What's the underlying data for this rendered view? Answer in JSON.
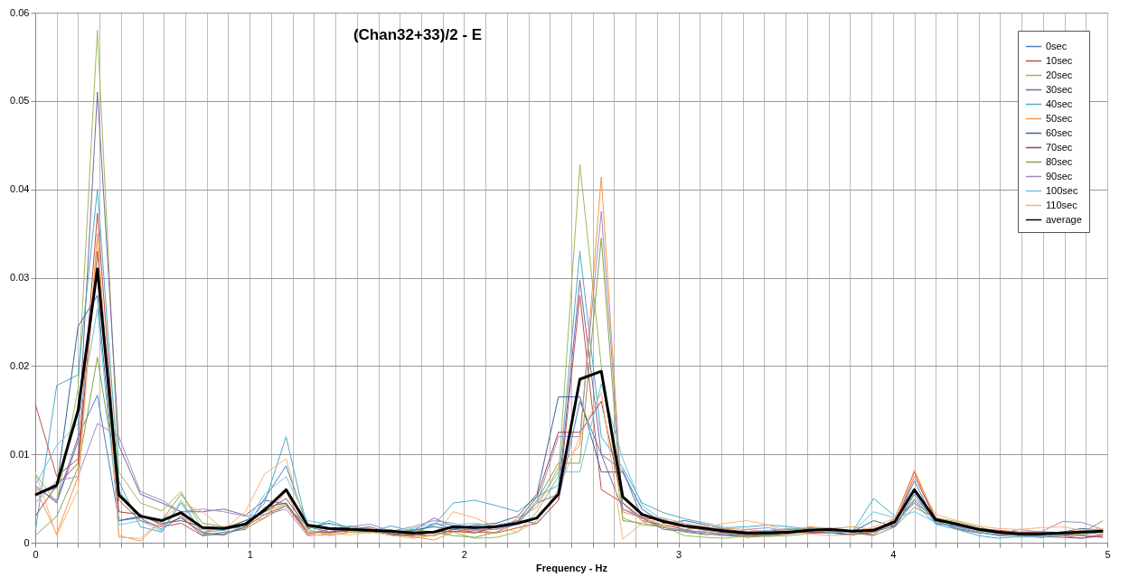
{
  "chart_data": {
    "type": "line",
    "title": "(Chan32+33)/2 - E",
    "xlabel": "Frequency - Hz",
    "x": [
      0,
      0.1,
      0.2,
      0.29,
      0.39,
      0.49,
      0.59,
      0.68,
      0.78,
      0.88,
      0.98,
      1.07,
      1.17,
      1.27,
      1.37,
      1.47,
      1.56,
      1.66,
      1.76,
      1.86,
      1.95,
      2.05,
      2.15,
      2.25,
      2.34,
      2.44,
      2.54,
      2.64,
      2.74,
      2.83,
      2.93,
      3.03,
      3.13,
      3.22,
      3.32,
      3.42,
      3.52,
      3.61,
      3.71,
      3.81,
      3.91,
      4.01,
      4.1,
      4.2,
      4.3,
      4.4,
      4.49,
      4.59,
      4.69,
      4.79,
      4.88,
      4.98
    ],
    "xlim": [
      0,
      5
    ],
    "xticks": [
      0,
      {
        "value": 0.1,
        "label": null
      },
      {
        "value": 0.2,
        "label": null
      },
      {
        "value": 0.3,
        "label": null
      },
      {
        "value": 0.4,
        "label": null
      },
      {
        "value": 0.5,
        "label": null
      },
      {
        "value": 0.6,
        "label": null
      },
      {
        "value": 0.7,
        "label": null
      },
      {
        "value": 0.8,
        "label": null
      },
      {
        "value": 0.9,
        "label": null
      },
      1,
      {
        "value": 1.1,
        "label": null
      },
      {
        "value": 1.2,
        "label": null
      },
      {
        "value": 1.3,
        "label": null
      },
      {
        "value": 1.4,
        "label": null
      },
      {
        "value": 1.5,
        "label": null
      },
      {
        "value": 1.6,
        "label": null
      },
      {
        "value": 1.7,
        "label": null
      },
      {
        "value": 1.8,
        "label": null
      },
      {
        "value": 1.9,
        "label": null
      },
      2,
      {
        "value": 2.1,
        "label": null
      },
      {
        "value": 2.2,
        "label": null
      },
      {
        "value": 2.3,
        "label": null
      },
      {
        "value": 2.4,
        "label": null
      },
      {
        "value": 2.5,
        "label": null
      },
      {
        "value": 2.6,
        "label": null
      },
      {
        "value": 2.7,
        "label": null
      },
      {
        "value": 2.8,
        "label": null
      },
      {
        "value": 2.9,
        "label": null
      },
      3,
      {
        "value": 3.1,
        "label": null
      },
      {
        "value": 3.2,
        "label": null
      },
      {
        "value": 3.3,
        "label": null
      },
      {
        "value": 3.4,
        "label": null
      },
      {
        "value": 3.5,
        "label": null
      },
      {
        "value": 3.6,
        "label": null
      },
      {
        "value": 3.7,
        "label": null
      },
      {
        "value": 3.8,
        "label": null
      },
      {
        "value": 3.9,
        "label": null
      },
      4,
      {
        "value": 4.1,
        "label": null
      },
      {
        "value": 4.2,
        "label": null
      },
      {
        "value": 4.3,
        "label": null
      },
      {
        "value": 4.4,
        "label": null
      },
      {
        "value": 4.5,
        "label": null
      },
      {
        "value": 4.6,
        "label": null
      },
      {
        "value": 4.7,
        "label": null
      },
      {
        "value": 4.8,
        "label": null
      },
      {
        "value": 4.9,
        "label": null
      },
      5
    ],
    "ylim": [
      0,
      0.06
    ],
    "yticks": [
      0,
      0.01,
      0.02,
      0.03,
      0.04,
      0.05,
      0.06
    ],
    "grid": true,
    "legend": "top right",
    "marker": "none",
    "line_style": "solid",
    "series": [
      {
        "name": "0sec",
        "color": "#4f81bd",
        "values": [
          0.0062,
          0.0048,
          0.012,
          0.0167,
          0.0025,
          0.0028,
          0.0015,
          0.003,
          0.0008,
          0.0012,
          0.0015,
          0.005,
          0.0087,
          0.0018,
          0.0012,
          0.0018,
          0.0016,
          0.001,
          0.0009,
          0.0022,
          0.0016,
          0.0014,
          0.0015,
          0.0025,
          0.0022,
          0.0048,
          0.016,
          0.01,
          0.0082,
          0.0028,
          0.0017,
          0.0014,
          0.0012,
          0.0009,
          0.0008,
          0.001,
          0.0015,
          0.0012,
          0.0011,
          0.0009,
          0.0016,
          0.0021,
          0.007,
          0.0022,
          0.0018,
          0.0012,
          0.0009,
          0.0008,
          0.0007,
          0.001,
          0.0009,
          0.0012
        ]
      },
      {
        "name": "10sec",
        "color": "#c0504d",
        "values": [
          0.0157,
          0.0075,
          0.0095,
          0.0373,
          0.0048,
          0.0025,
          0.0018,
          0.0022,
          0.0008,
          0.001,
          0.0018,
          0.0032,
          0.0042,
          0.001,
          0.0015,
          0.0012,
          0.0013,
          0.0012,
          0.0009,
          0.0008,
          0.0015,
          0.0012,
          0.0011,
          0.0017,
          0.0022,
          0.0048,
          0.028,
          0.006,
          0.0045,
          0.0025,
          0.002,
          0.0015,
          0.0017,
          0.0012,
          0.0009,
          0.0009,
          0.0011,
          0.0013,
          0.0016,
          0.0012,
          0.0009,
          0.0028,
          0.008,
          0.0025,
          0.0016,
          0.0012,
          0.0008,
          0.001,
          0.0006,
          0.0008,
          0.0005,
          0.001
        ]
      },
      {
        "name": "20sec",
        "color": "#9bbb59",
        "values": [
          0.0078,
          0.0045,
          0.0175,
          0.058,
          0.008,
          0.0045,
          0.0036,
          0.0058,
          0.0015,
          0.0015,
          0.0025,
          0.0035,
          0.0044,
          0.0015,
          0.0008,
          0.0012,
          0.0011,
          0.0015,
          0.0006,
          0.0009,
          0.0012,
          0.0005,
          0.0006,
          0.0012,
          0.0035,
          0.0075,
          0.0428,
          0.02,
          0.0028,
          0.002,
          0.0018,
          0.0008,
          0.0006,
          0.0005,
          0.0008,
          0.0007,
          0.0008,
          0.001,
          0.0013,
          0.0012,
          0.0016,
          0.002,
          0.005,
          0.0028,
          0.0024,
          0.0018,
          0.0012,
          0.0011,
          0.0008,
          0.0012,
          0.0009,
          0.0016
        ]
      },
      {
        "name": "30sec",
        "color": "#8064a2",
        "values": [
          0.0065,
          0.0045,
          0.0115,
          0.051,
          0.011,
          0.0055,
          0.0045,
          0.0035,
          0.0035,
          0.0038,
          0.0031,
          0.0048,
          0.0044,
          0.0012,
          0.0012,
          0.0015,
          0.0018,
          0.0011,
          0.0013,
          0.0028,
          0.0018,
          0.0016,
          0.002,
          0.0024,
          0.0045,
          0.0055,
          0.0297,
          0.01,
          0.0038,
          0.0028,
          0.0015,
          0.0013,
          0.001,
          0.0008,
          0.0007,
          0.0008,
          0.001,
          0.0012,
          0.0011,
          0.0009,
          0.0012,
          0.0019,
          0.0048,
          0.0025,
          0.0015,
          0.0011,
          0.0009,
          0.0011,
          0.0007,
          0.0006,
          0.0005,
          0.0008
        ]
      },
      {
        "name": "40sec",
        "color": "#4bacc6",
        "values": [
          0.0012,
          0.0178,
          0.019,
          0.04,
          0.007,
          0.0018,
          0.0012,
          0.0045,
          0.0012,
          0.0014,
          0.002,
          0.0045,
          0.012,
          0.0015,
          0.0025,
          0.0016,
          0.0012,
          0.0019,
          0.0013,
          0.002,
          0.0045,
          0.0048,
          0.0042,
          0.0035,
          0.0052,
          0.0065,
          0.033,
          0.012,
          0.0085,
          0.0045,
          0.0034,
          0.0027,
          0.0022,
          0.0017,
          0.0018,
          0.002,
          0.0018,
          0.0015,
          0.0016,
          0.0012,
          0.005,
          0.003,
          0.0045,
          0.0021,
          0.0015,
          0.0008,
          0.0005,
          0.0007,
          0.0006,
          0.001,
          0.0011,
          0.0014
        ]
      },
      {
        "name": "50sec",
        "color": "#f79646",
        "values": [
          0.0062,
          0.001,
          0.0075,
          0.035,
          0.0008,
          0.0002,
          0.0025,
          0.0032,
          0.0012,
          0.0018,
          0.0022,
          0.0028,
          0.0058,
          0.0008,
          0.0009,
          0.0012,
          0.0016,
          0.0009,
          0.0007,
          0.0003,
          0.0012,
          0.0015,
          0.0011,
          0.0028,
          0.004,
          0.0085,
          0.011,
          0.0414,
          0.0035,
          0.0028,
          0.002,
          0.0018,
          0.0014,
          0.0016,
          0.0015,
          0.0012,
          0.0014,
          0.0018,
          0.0016,
          0.0018,
          0.0015,
          0.0025,
          0.0082,
          0.0028,
          0.0022,
          0.0016,
          0.0012,
          0.0011,
          0.0013,
          0.0011,
          0.0014,
          0.0012
        ]
      },
      {
        "name": "60sec",
        "color": "#3b6699",
        "values": [
          0.0055,
          0.0062,
          0.0245,
          0.028,
          0.0025,
          0.003,
          0.0022,
          0.0025,
          0.0018,
          0.0016,
          0.0025,
          0.0035,
          0.005,
          0.0017,
          0.0022,
          0.0016,
          0.0012,
          0.0011,
          0.0014,
          0.0018,
          0.0015,
          0.002,
          0.0022,
          0.003,
          0.0055,
          0.0165,
          0.0165,
          0.008,
          0.008,
          0.0038,
          0.0022,
          0.0025,
          0.002,
          0.0015,
          0.0012,
          0.0013,
          0.0016,
          0.0014,
          0.0013,
          0.0012,
          0.0025,
          0.0018,
          0.0055,
          0.0022,
          0.0019,
          0.0014,
          0.0012,
          0.0009,
          0.0011,
          0.0012,
          0.0016,
          0.0014
        ]
      },
      {
        "name": "70sec",
        "color": "#a34340",
        "values": [
          0.003,
          0.0065,
          0.009,
          0.033,
          0.0035,
          0.0032,
          0.002,
          0.0028,
          0.0011,
          0.0009,
          0.0018,
          0.004,
          0.0045,
          0.0012,
          0.0011,
          0.0014,
          0.0015,
          0.0009,
          0.0008,
          0.0012,
          0.0013,
          0.0011,
          0.0018,
          0.0025,
          0.0052,
          0.0125,
          0.0125,
          0.016,
          0.0045,
          0.0028,
          0.0026,
          0.0018,
          0.0014,
          0.0011,
          0.0009,
          0.0012,
          0.0013,
          0.0011,
          0.0012,
          0.0009,
          0.0012,
          0.0022,
          0.0075,
          0.0027,
          0.002,
          0.0016,
          0.0014,
          0.0012,
          0.0012,
          0.0009,
          0.0008,
          0.0006
        ]
      },
      {
        "name": "80sec",
        "color": "#86a34a",
        "values": [
          0.0008,
          0.003,
          0.0085,
          0.021,
          0.0058,
          0.003,
          0.0025,
          0.0055,
          0.0022,
          0.0018,
          0.0016,
          0.0028,
          0.0042,
          0.0018,
          0.0015,
          0.0019,
          0.0013,
          0.001,
          0.0015,
          0.0012,
          0.0008,
          0.0006,
          0.0012,
          0.0022,
          0.0048,
          0.009,
          0.009,
          0.0345,
          0.0025,
          0.0022,
          0.0018,
          0.0012,
          0.0009,
          0.0011,
          0.0006,
          0.0008,
          0.0011,
          0.0017,
          0.0015,
          0.0011,
          0.0008,
          0.0018,
          0.004,
          0.0028,
          0.0022,
          0.0013,
          0.0011,
          0.0008,
          0.0009,
          0.0012,
          0.0011,
          0.0025
        ]
      },
      {
        "name": "90sec",
        "color": "#a08fc0",
        "values": [
          0.0045,
          0.007,
          0.0075,
          0.0135,
          0.012,
          0.0058,
          0.0048,
          0.0035,
          0.0038,
          0.0035,
          0.003,
          0.0032,
          0.0038,
          0.0008,
          0.0015,
          0.0018,
          0.0021,
          0.0013,
          0.0018,
          0.0025,
          0.0022,
          0.0015,
          0.0015,
          0.0021,
          0.0045,
          0.012,
          0.012,
          0.0375,
          0.0038,
          0.003,
          0.0028,
          0.0013,
          0.0012,
          0.0009,
          0.0015,
          0.0017,
          0.0012,
          0.0016,
          0.0011,
          0.0013,
          0.0012,
          0.0022,
          0.0045,
          0.0028,
          0.0018,
          0.0015,
          0.001,
          0.0015,
          0.0012,
          0.0024,
          0.0023,
          0.0015
        ]
      },
      {
        "name": "100sec",
        "color": "#6ec6dc",
        "values": [
          0.0065,
          0.011,
          0.0135,
          0.0265,
          0.002,
          0.0025,
          0.0013,
          0.0048,
          0.001,
          0.0008,
          0.0022,
          0.0055,
          0.0075,
          0.0025,
          0.0021,
          0.0018,
          0.0014,
          0.0012,
          0.0016,
          0.0022,
          0.002,
          0.0022,
          0.0019,
          0.0025,
          0.0045,
          0.008,
          0.008,
          0.018,
          0.0095,
          0.0042,
          0.0025,
          0.0022,
          0.0016,
          0.0013,
          0.0012,
          0.0014,
          0.0016,
          0.0014,
          0.0012,
          0.0012,
          0.0035,
          0.0028,
          0.0035,
          0.0023,
          0.0017,
          0.0012,
          0.0008,
          0.0006,
          0.0007,
          0.0009,
          0.0012,
          0.0015
        ]
      },
      {
        "name": "110sec",
        "color": "#f9b27a",
        "values": [
          0.008,
          0.0008,
          0.006,
          0.0345,
          0.0006,
          0.0005,
          0.0025,
          0.0045,
          0.0035,
          0.0015,
          0.0035,
          0.0078,
          0.0095,
          0.0012,
          0.001,
          0.0009,
          0.0012,
          0.0008,
          0.0005,
          0.0008,
          0.0035,
          0.0028,
          0.0018,
          0.0012,
          0.0025,
          0.006,
          0.012,
          0.017,
          0.0004,
          0.0022,
          0.0028,
          0.0022,
          0.0018,
          0.0022,
          0.0025,
          0.002,
          0.0012,
          0.001,
          0.0008,
          0.0009,
          0.0018,
          0.0028,
          0.0075,
          0.0032,
          0.0025,
          0.0019,
          0.0016,
          0.0015,
          0.0017,
          0.0018,
          0.0014,
          0.0016
        ]
      },
      {
        "name": "average",
        "color": "#000000",
        "values": [
          0.0054,
          0.0065,
          0.015,
          0.031,
          0.0054,
          0.003,
          0.0025,
          0.0034,
          0.0017,
          0.0016,
          0.0021,
          0.0037,
          0.006,
          0.002,
          0.0016,
          0.0015,
          0.0014,
          0.0013,
          0.0011,
          0.0012,
          0.0018,
          0.0017,
          0.0018,
          0.0022,
          0.0028,
          0.0055,
          0.0185,
          0.0194,
          0.0052,
          0.0032,
          0.0024,
          0.0019,
          0.0016,
          0.0013,
          0.0011,
          0.0011,
          0.0012,
          0.0014,
          0.0015,
          0.0013,
          0.0014,
          0.0024,
          0.006,
          0.0026,
          0.0021,
          0.0015,
          0.0012,
          0.001,
          0.001,
          0.0011,
          0.0012,
          0.0013
        ]
      }
    ]
  }
}
